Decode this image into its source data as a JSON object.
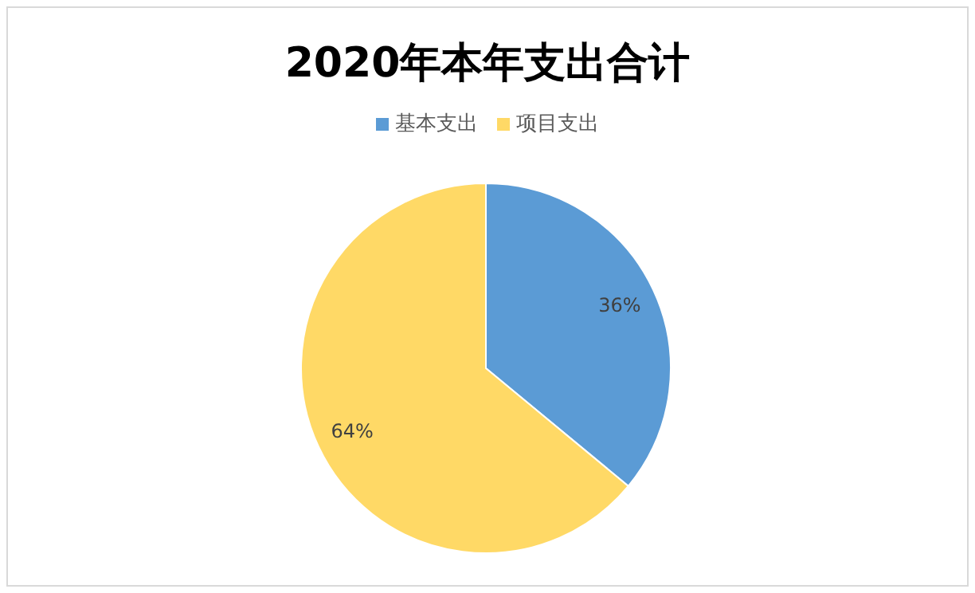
{
  "chart_data": {
    "type": "pie",
    "title": "2020年本年支出合计",
    "categories": [
      "基本支出",
      "项目支出"
    ],
    "values": [
      36,
      64
    ],
    "colors": [
      "#5b9bd5",
      "#ffd966"
    ],
    "value_labels": [
      "36%",
      "64%"
    ],
    "legend": "top"
  }
}
